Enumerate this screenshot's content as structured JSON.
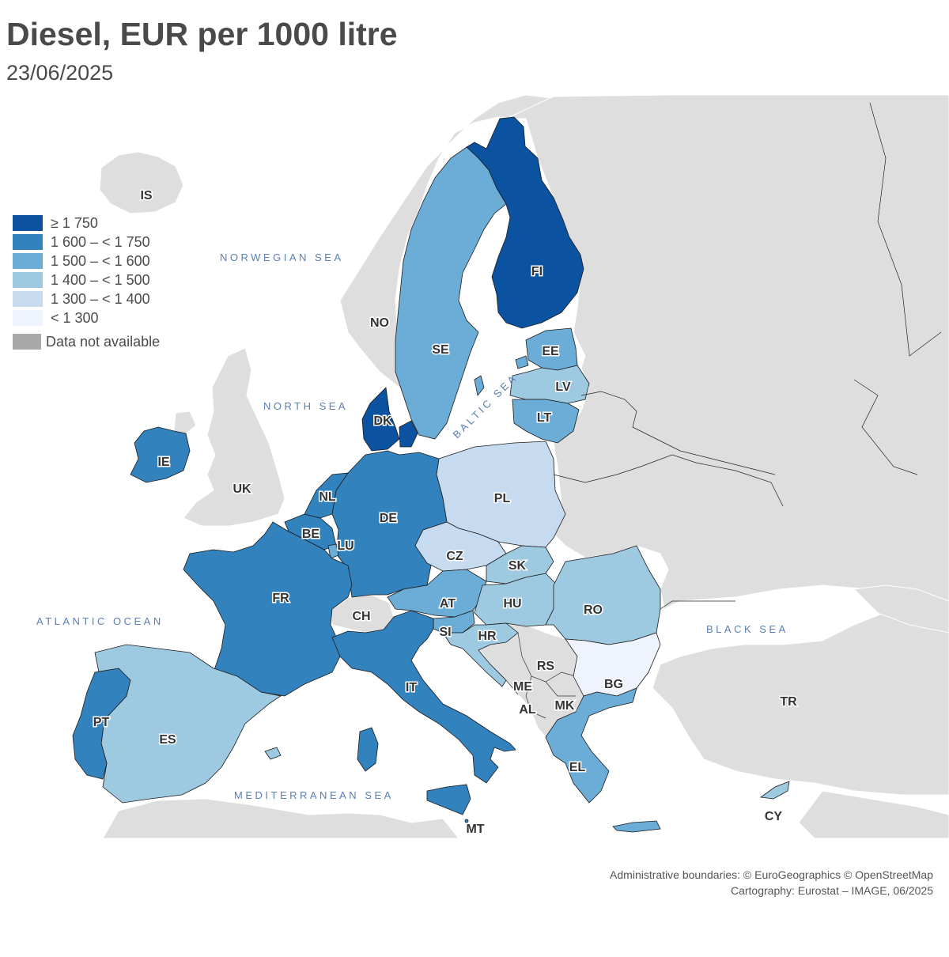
{
  "title": "Diesel, EUR per 1000 litre",
  "date": "23/06/2025",
  "colors": {
    "ge1750": "#0b52a0",
    "c1600": "#3282be",
    "c1500": "#6badd6",
    "c1400": "#9ecae1",
    "c1300": "#c6dbef",
    "lt1300": "#eef3fe",
    "na": "#a9a9a9",
    "nonEU": "#dedede",
    "sea": "#ffffff"
  },
  "legend": [
    {
      "label": "≥ 1 750",
      "color": "#0b52a0"
    },
    {
      "label": "1 600 – < 1 750",
      "color": "#3282be"
    },
    {
      "label": "1 500 – < 1 600",
      "color": "#6badd6"
    },
    {
      "label": "1 400 – < 1 500",
      "color": "#9ecae1"
    },
    {
      "label": "1 300 – < 1 400",
      "color": "#c6dbef"
    },
    {
      "label": "< 1 300",
      "color": "#eef3fe"
    }
  ],
  "legend_na": "Data not available",
  "seas": {
    "norwegian": "NORWEGIAN SEA",
    "north": "NORTH SEA",
    "baltic": "BALTIC SEA",
    "atlantic": "ATLANTIC OCEAN",
    "black": "BLACK SEA",
    "mediterranean": "MEDITERRANEAN SEA"
  },
  "countries": {
    "FI": {
      "label": "FI",
      "class": "ge1750"
    },
    "DK": {
      "label": "DK",
      "class": "ge1750"
    },
    "SE": {
      "label": "SE",
      "class": "c1500"
    },
    "EE": {
      "label": "EE",
      "class": "c1500"
    },
    "LV": {
      "label": "LV",
      "class": "c1400"
    },
    "LT": {
      "label": "LT",
      "class": "c1500"
    },
    "PL": {
      "label": "PL",
      "class": "c1300"
    },
    "DE": {
      "label": "DE",
      "class": "c1600"
    },
    "NL": {
      "label": "NL",
      "class": "c1600"
    },
    "BE": {
      "label": "BE",
      "class": "c1600"
    },
    "LU": {
      "label": "LU",
      "class": "c1500"
    },
    "FR": {
      "label": "FR",
      "class": "c1600"
    },
    "IE": {
      "label": "IE",
      "class": "c1600"
    },
    "CZ": {
      "label": "CZ",
      "class": "c1300"
    },
    "SK": {
      "label": "SK",
      "class": "c1400"
    },
    "AT": {
      "label": "AT",
      "class": "c1500"
    },
    "HU": {
      "label": "HU",
      "class": "c1400"
    },
    "SI": {
      "label": "SI",
      "class": "c1500"
    },
    "HR": {
      "label": "HR",
      "class": "c1400"
    },
    "RO": {
      "label": "RO",
      "class": "c1400"
    },
    "BG": {
      "label": "BG",
      "class": "lt1300"
    },
    "EL": {
      "label": "EL",
      "class": "c1500"
    },
    "IT": {
      "label": "IT",
      "class": "c1600"
    },
    "ES": {
      "label": "ES",
      "class": "c1400"
    },
    "PT": {
      "label": "PT",
      "class": "c1600"
    },
    "CY": {
      "label": "CY",
      "class": "c1400"
    },
    "MT": {
      "label": "MT",
      "class": "c1600"
    },
    "IS": {
      "label": "IS",
      "class": "nonEU"
    },
    "NO": {
      "label": "NO",
      "class": "nonEU"
    },
    "UK": {
      "label": "UK",
      "class": "nonEU"
    },
    "CH": {
      "label": "CH",
      "class": "nonEU"
    },
    "RS": {
      "label": "RS",
      "class": "nonEU"
    },
    "ME": {
      "label": "ME",
      "class": "nonEU"
    },
    "AL": {
      "label": "AL",
      "class": "nonEU"
    },
    "MK": {
      "label": "MK",
      "class": "nonEU"
    },
    "TR": {
      "label": "TR",
      "class": "nonEU"
    }
  },
  "credits": {
    "line1": "Administrative boundaries: © EuroGeographics © OpenStreetMap",
    "line2": "Cartography: Eurostat – IMAGE, 06/2025"
  }
}
